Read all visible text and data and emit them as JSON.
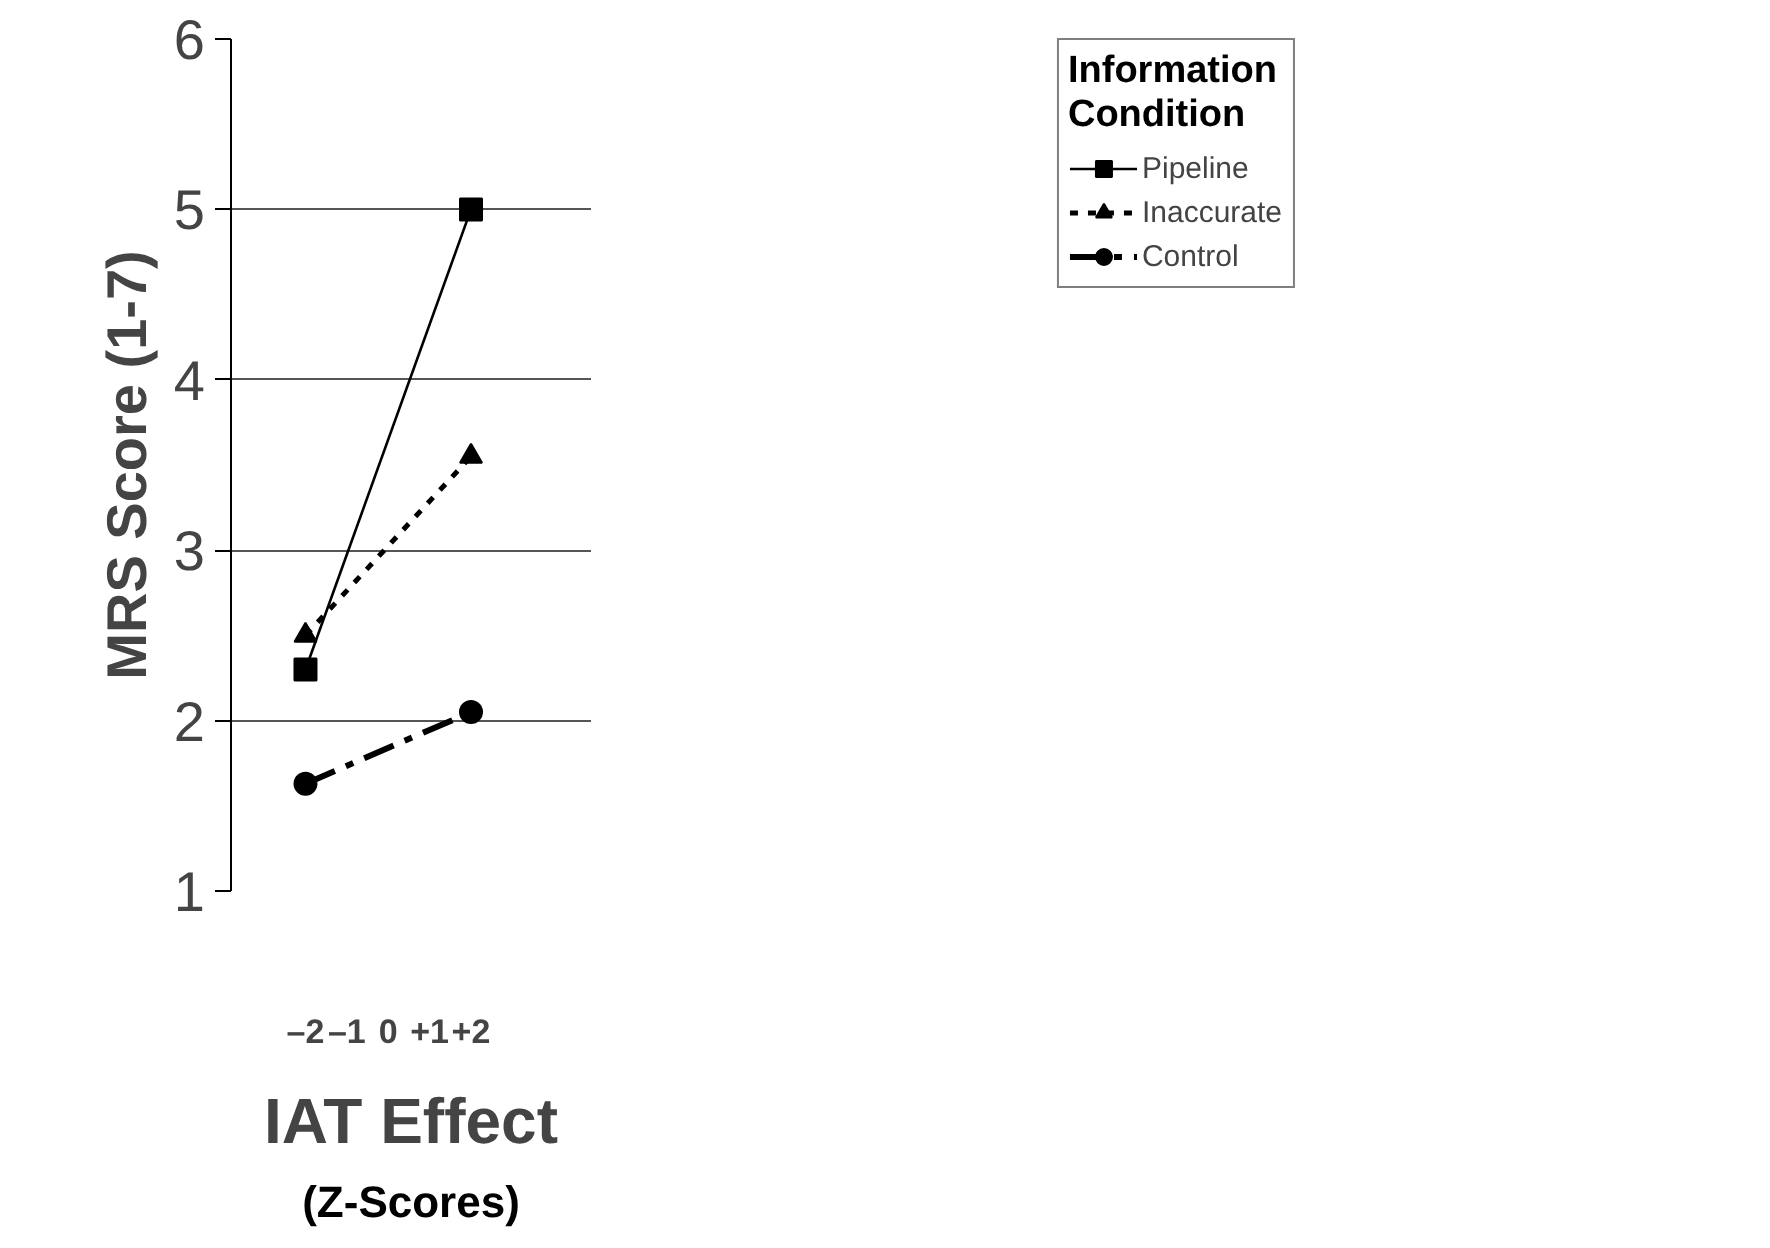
{
  "chart_data": {
    "type": "line",
    "xlabel": "IAT Effect",
    "ylabel": "MRS Score (1-7)",
    "legend_title": "Information Condition",
    "annotations": [
      "(Z-Scores)"
    ],
    "x": [
      -2,
      2
    ],
    "xlim": [
      -3.8,
      4.9
    ],
    "xticks": [
      {
        "value": -2,
        "label": "–2"
      },
      {
        "value": -1,
        "label": "–1"
      },
      0,
      {
        "value": 1,
        "label": "+1"
      },
      {
        "value": 2,
        "label": "+2"
      }
    ],
    "ylim": [
      1,
      6
    ],
    "yticks": [
      1,
      2,
      3,
      4,
      5,
      6
    ],
    "grid": "y",
    "legend": "right",
    "series": [
      {
        "name": "Pipeline",
        "color": "#000000",
        "values": [
          2.3,
          5.0
        ],
        "marker": "square",
        "line_style": "solid"
      },
      {
        "name": "Inaccurate",
        "color": "#000000",
        "values": [
          2.5,
          3.55
        ],
        "marker": "triangle",
        "line_style": "dotted"
      },
      {
        "name": "Control",
        "color": "#000000",
        "values": [
          1.63,
          2.05
        ],
        "marker": "circle",
        "line_style": "dashed"
      }
    ]
  }
}
